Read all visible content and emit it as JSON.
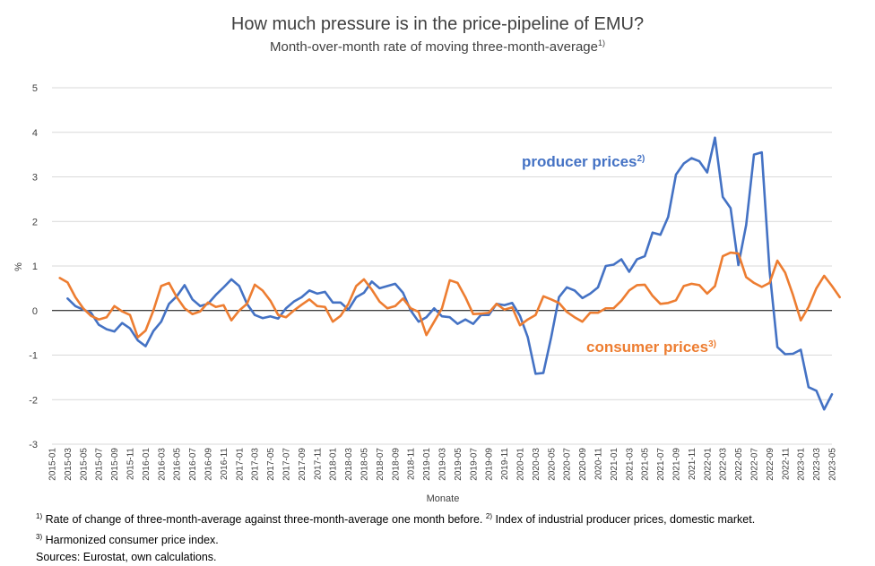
{
  "chart_data": {
    "type": "line",
    "title": "How much pressure is in the price-pipeline of EMU?",
    "subtitle": "Month-over-month rate of moving three-month-average",
    "subtitle_note": "1)",
    "xlabel": "Monate",
    "ylabel": "%",
    "ylim": [
      -3,
      5
    ],
    "yticks": [
      -3,
      -2,
      -1,
      0,
      1,
      2,
      3,
      4,
      5
    ],
    "grid": true,
    "x_start": "2015-01",
    "x_tick_labels": [
      "2015-01",
      "2015-03",
      "2015-05",
      "2015-07",
      "2015-09",
      "2015-11",
      "2016-01",
      "2016-03",
      "2016-05",
      "2016-07",
      "2016-09",
      "2016-11",
      "2017-01",
      "2017-03",
      "2017-05",
      "2017-07",
      "2017-09",
      "2017-11",
      "2018-01",
      "2018-03",
      "2018-05",
      "2018-07",
      "2018-09",
      "2018-11",
      "2019-01",
      "2019-03",
      "2019-05",
      "2019-07",
      "2019-09",
      "2019-11",
      "2020-01",
      "2020-03",
      "2020-05",
      "2020-07",
      "2020-09",
      "2020-11",
      "2021-01",
      "2021-03",
      "2021-05",
      "2021-07",
      "2021-09",
      "2021-11",
      "2022-01",
      "2022-03",
      "2022-05",
      "2022-07",
      "2022-09",
      "2022-11",
      "2023-01",
      "2023-03",
      "2023-05"
    ],
    "series": [
      {
        "name": "producer prices",
        "note": "2)",
        "color": "#4472c4",
        "start": "2015-03",
        "values": [
          0.27,
          0.1,
          0.02,
          -0.05,
          -0.32,
          -0.42,
          -0.47,
          -0.28,
          -0.4,
          -0.67,
          -0.8,
          -0.46,
          -0.25,
          0.15,
          0.32,
          0.57,
          0.25,
          0.1,
          0.15,
          0.35,
          0.52,
          0.7,
          0.55,
          0.15,
          -0.1,
          -0.17,
          -0.13,
          -0.18,
          0.05,
          0.2,
          0.3,
          0.45,
          0.38,
          0.42,
          0.18,
          0.18,
          0.02,
          0.3,
          0.4,
          0.65,
          0.5,
          0.55,
          0.6,
          0.4,
          0.0,
          -0.25,
          -0.15,
          0.05,
          -0.13,
          -0.15,
          -0.3,
          -0.2,
          -0.3,
          -0.1,
          -0.1,
          0.15,
          0.12,
          0.17,
          -0.12,
          -0.6,
          -1.42,
          -1.4,
          -0.6,
          0.3,
          0.52,
          0.45,
          0.28,
          0.38,
          0.52,
          1.0,
          1.03,
          1.15,
          0.87,
          1.15,
          1.22,
          1.75,
          1.7,
          2.1,
          3.05,
          3.3,
          3.42,
          3.35,
          3.1,
          3.88,
          2.55,
          2.3,
          1.02,
          1.92,
          3.5,
          3.55,
          0.9,
          -0.82,
          -0.98,
          -0.97,
          -0.88,
          -1.72,
          -1.8,
          -2.22,
          -1.88
        ]
      },
      {
        "name": "consumer prices",
        "note": "3)",
        "color": "#ed7d31",
        "start": "2015-02",
        "values": [
          0.73,
          0.63,
          0.3,
          0.05,
          -0.12,
          -0.2,
          -0.15,
          0.1,
          -0.02,
          -0.1,
          -0.6,
          -0.45,
          0.0,
          0.55,
          0.62,
          0.3,
          0.05,
          -0.08,
          -0.02,
          0.18,
          0.08,
          0.12,
          -0.22,
          0.0,
          0.15,
          0.58,
          0.45,
          0.22,
          -0.1,
          -0.15,
          0.0,
          0.13,
          0.25,
          0.1,
          0.08,
          -0.25,
          -0.12,
          0.15,
          0.55,
          0.7,
          0.47,
          0.2,
          0.05,
          0.1,
          0.27,
          0.05,
          -0.03,
          -0.55,
          -0.25,
          0.05,
          0.68,
          0.62,
          0.3,
          -0.08,
          -0.07,
          -0.05,
          0.15,
          0.02,
          0.07,
          -0.33,
          -0.2,
          -0.1,
          0.32,
          0.25,
          0.17,
          -0.03,
          -0.15,
          -0.25,
          -0.05,
          -0.05,
          0.05,
          0.05,
          0.22,
          0.45,
          0.57,
          0.58,
          0.33,
          0.15,
          0.17,
          0.23,
          0.55,
          0.6,
          0.57,
          0.38,
          0.55,
          1.22,
          1.3,
          1.28,
          0.75,
          0.62,
          0.53,
          0.62,
          1.12,
          0.85,
          0.35,
          -0.22,
          0.08,
          0.5,
          0.78,
          0.55,
          0.3
        ]
      }
    ],
    "series_labels": {
      "producer": "producer prices",
      "producer_note": "2)",
      "consumer": "consumer prices",
      "consumer_note": "3)"
    }
  },
  "footnotes": {
    "line1_mark1": "1)",
    "line1_text1": " Rate of change of three-month-average against three-month-average one month before. ",
    "line1_mark2": "2)",
    "line1_text2": " Index of industrial producer prices, domestic market.",
    "line2_mark": "3)",
    "line2_text": " Harmonized consumer price index.",
    "line3_text": "Sources: Eurostat, own calculations."
  }
}
